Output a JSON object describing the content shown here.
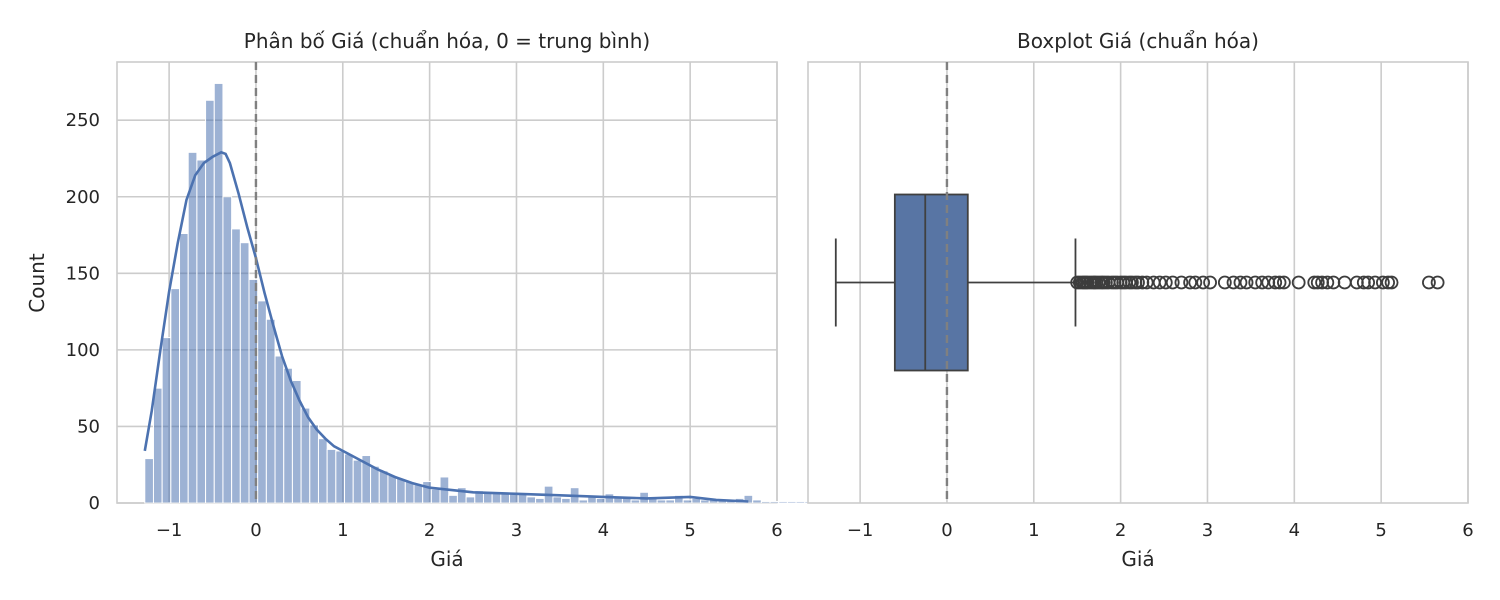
{
  "chart_data": [
    {
      "type": "histogram",
      "title": "Phân bố Giá (chuẩn hóa, 0 = trung bình)",
      "xlabel": "Giá",
      "ylabel": "Count",
      "xlim": [
        -1.6,
        6.0
      ],
      "ylim": [
        0,
        288
      ],
      "xticks": [
        -1,
        0,
        1,
        2,
        3,
        4,
        5,
        6
      ],
      "yticks": [
        0,
        50,
        100,
        150,
        200,
        250
      ],
      "grid": true,
      "bins": {
        "start": -1.28,
        "width": 0.1,
        "counts": [
          29,
          75,
          108,
          140,
          176,
          229,
          224,
          263,
          274,
          200,
          179,
          170,
          146,
          132,
          120,
          96,
          88,
          80,
          62,
          51,
          42,
          35,
          34,
          32,
          28,
          31,
          24,
          21,
          18,
          16,
          14,
          12,
          14,
          9,
          17,
          5,
          10,
          4,
          8,
          7,
          7,
          6,
          6,
          6,
          4,
          3,
          11,
          4,
          3,
          10,
          2,
          5,
          3,
          6,
          4,
          4,
          2,
          7,
          3,
          2,
          2,
          5,
          2,
          3,
          2,
          2,
          2,
          2,
          3,
          5,
          2,
          1,
          1,
          1,
          1,
          1,
          1,
          1,
          1
        ]
      },
      "kde": {
        "x": [
          -1.28,
          -1.2,
          -1.1,
          -1.0,
          -0.9,
          -0.8,
          -0.7,
          -0.6,
          -0.5,
          -0.4,
          -0.35,
          -0.3,
          -0.2,
          -0.1,
          0.0,
          0.1,
          0.2,
          0.3,
          0.4,
          0.5,
          0.6,
          0.7,
          0.8,
          0.9,
          1.0,
          1.2,
          1.4,
          1.6,
          1.8,
          2.0,
          2.5,
          3.0,
          3.5,
          4.0,
          4.5,
          5.0,
          5.3,
          5.67
        ],
        "y": [
          34,
          60,
          100,
          138,
          170,
          198,
          214,
          222,
          226,
          229,
          228,
          222,
          202,
          180,
          160,
          137,
          116,
          96,
          80,
          67,
          56,
          48,
          42,
          37,
          34,
          28,
          22,
          17,
          13,
          10,
          7,
          6,
          5,
          4,
          3,
          4,
          2,
          1
        ]
      },
      "reference_line": 0,
      "colors": {
        "bars": "#4c72b0",
        "kde": "#4c72b0",
        "reference": "#808080"
      }
    },
    {
      "type": "boxplot",
      "title": "Boxplot Giá (chuẩn hóa)",
      "xlabel": "Giá",
      "xlim": [
        -1.6,
        6.0
      ],
      "xticks": [
        -1,
        0,
        1,
        2,
        3,
        4,
        5,
        6
      ],
      "grid": true,
      "stats": {
        "whisker_low": -1.28,
        "q1": -0.6,
        "median": -0.25,
        "q3": 0.24,
        "whisker_high": 1.48
      },
      "outliers": [
        1.5,
        1.53,
        1.56,
        1.58,
        1.6,
        1.62,
        1.65,
        1.68,
        1.7,
        1.72,
        1.75,
        1.78,
        1.8,
        1.83,
        1.86,
        1.9,
        1.93,
        1.96,
        2.0,
        2.03,
        2.06,
        2.1,
        2.13,
        2.17,
        2.2,
        2.25,
        2.3,
        2.38,
        2.45,
        2.52,
        2.6,
        2.7,
        2.8,
        2.86,
        2.95,
        3.03,
        3.2,
        3.3,
        3.38,
        3.45,
        3.55,
        3.63,
        3.7,
        3.78,
        3.83,
        3.88,
        4.05,
        4.23,
        4.27,
        4.32,
        4.38,
        4.45,
        4.58,
        4.72,
        4.8,
        4.85,
        4.93,
        5.02,
        5.08,
        5.12,
        5.55,
        5.65
      ],
      "reference_line": 0,
      "colors": {
        "box": "#5875a4",
        "edge": "#404040",
        "reference": "#808080"
      }
    }
  ]
}
